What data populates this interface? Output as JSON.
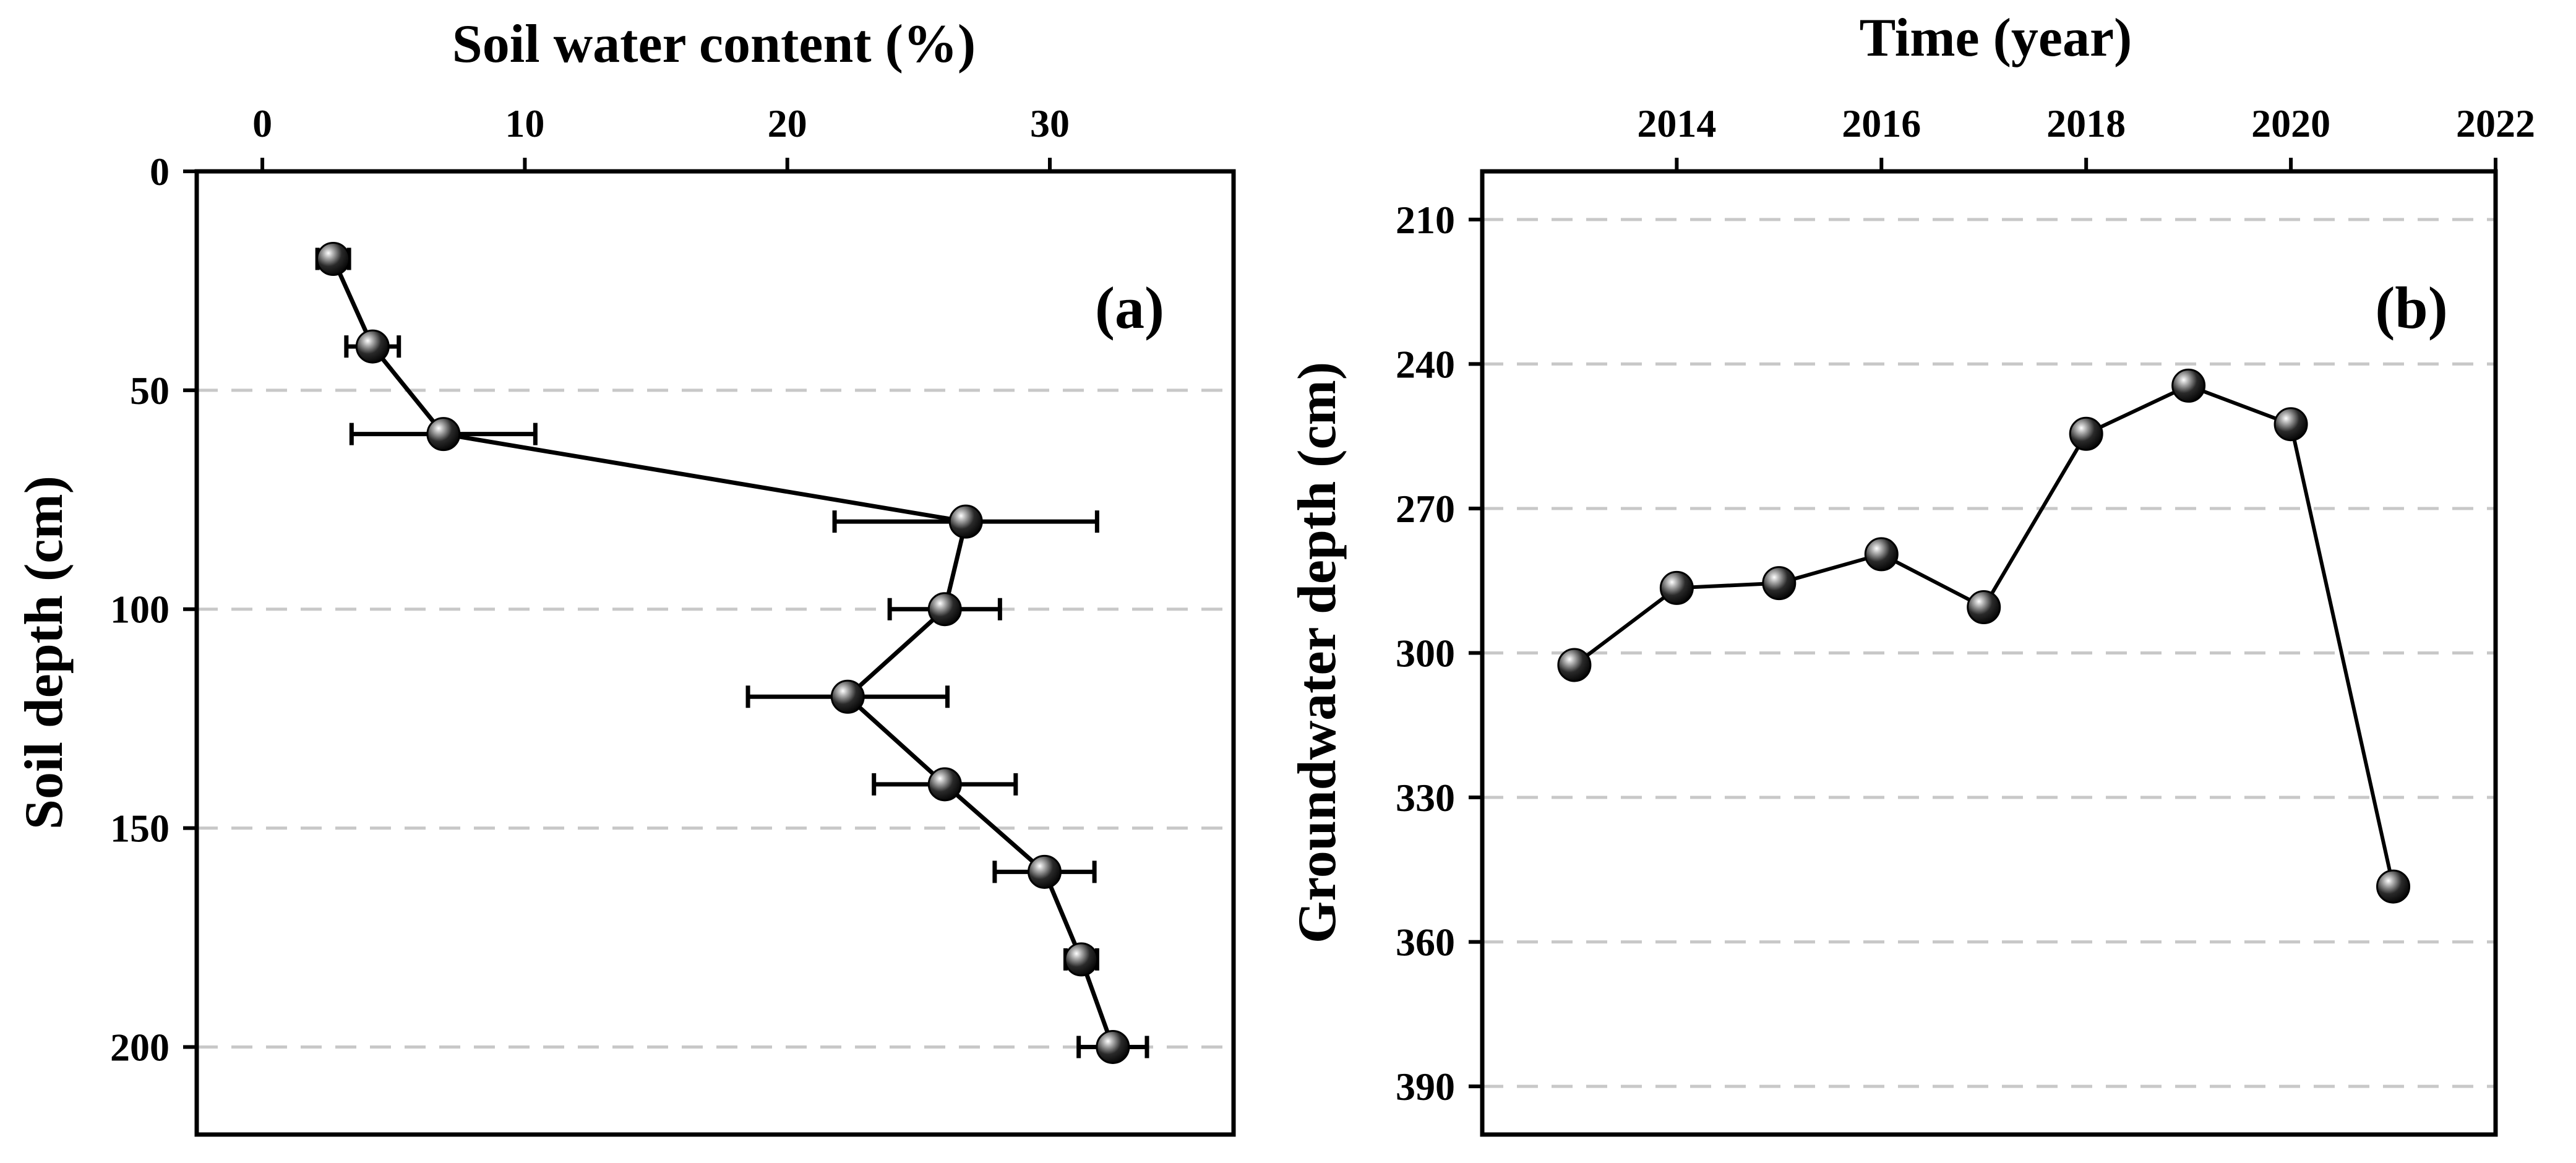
{
  "figure": {
    "panels": [
      "a",
      "b"
    ]
  },
  "chart_data": [
    {
      "id": "a",
      "type": "line",
      "orientation": "depth-profile",
      "title": "",
      "panel_label": "(a)",
      "xlabel": "Soil water content (%)",
      "ylabel": "Soil depth (cm)",
      "x_axis_position": "top",
      "y_axis_inverted": true,
      "xlim": [
        -2.5,
        37
      ],
      "ylim": [
        0,
        220
      ],
      "xticks": [
        0,
        10,
        20,
        30
      ],
      "yticks": [
        0,
        50,
        100,
        150,
        200
      ],
      "grid": "horizontal dashed at y ticks",
      "series": [
        {
          "name": "Soil water content",
          "points": [
            {
              "depth": 20,
              "value": 2.7,
              "err": 0.6
            },
            {
              "depth": 40,
              "value": 4.2,
              "err": 1.0
            },
            {
              "depth": 60,
              "value": 6.9,
              "err": 3.5
            },
            {
              "depth": 80,
              "value": 26.8,
              "err": 5.0
            },
            {
              "depth": 100,
              "value": 26.0,
              "err": 2.1
            },
            {
              "depth": 120,
              "value": 22.3,
              "err": 3.8
            },
            {
              "depth": 140,
              "value": 26.0,
              "err": 2.7
            },
            {
              "depth": 160,
              "value": 29.8,
              "err": 1.9
            },
            {
              "depth": 180,
              "value": 31.2,
              "err": 0.6
            },
            {
              "depth": 200,
              "value": 32.4,
              "err": 1.3
            }
          ]
        }
      ]
    },
    {
      "id": "b",
      "type": "line",
      "title": "",
      "panel_label": "(b)",
      "xlabel": "Time (year)",
      "ylabel": "Groundwater depth (cm)",
      "x_axis_position": "top",
      "y_axis_inverted": true,
      "xlim": [
        2012.1,
        2022
      ],
      "ylim": [
        200,
        400
      ],
      "xticks": [
        2014,
        2016,
        2018,
        2020,
        2022
      ],
      "yticks": [
        210,
        240,
        270,
        300,
        330,
        360,
        390
      ],
      "grid": "horizontal dashed at y ticks",
      "series": [
        {
          "name": "Groundwater depth",
          "x": [
            2013,
            2014,
            2015,
            2016,
            2017,
            2018,
            2019,
            2020,
            2021
          ],
          "y": [
            302.5,
            286.5,
            285.5,
            279.5,
            290.5,
            254.5,
            244.5,
            252.5,
            348.5
          ]
        }
      ]
    }
  ]
}
